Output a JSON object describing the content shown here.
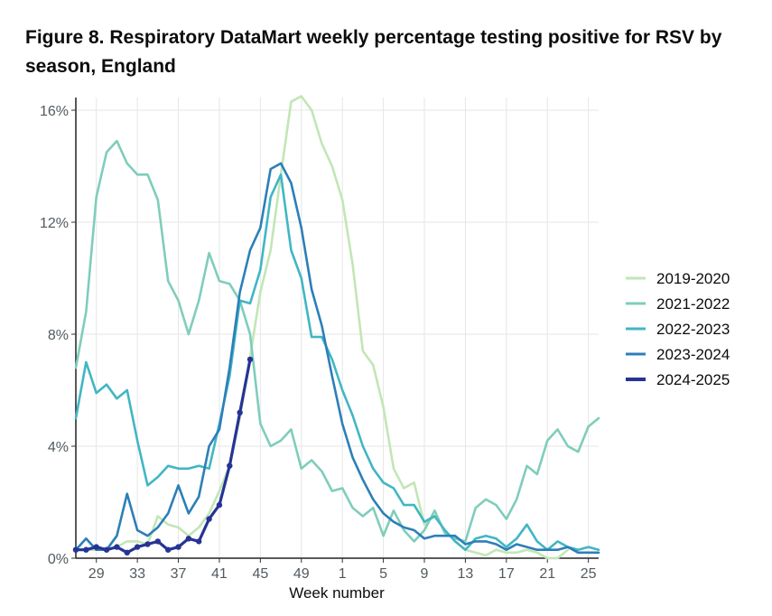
{
  "title": "Figure 8. Respiratory DataMart weekly percentage testing positive for RSV by season, England",
  "chart_data": {
    "type": "line",
    "title": "Figure 8. Respiratory DataMart weekly percentage testing positive for RSV by season, England",
    "xlabel": "Week number",
    "ylabel": "",
    "ylim": [
      0,
      16
    ],
    "grid": true,
    "legend_position": "right",
    "x": [
      27,
      28,
      29,
      30,
      31,
      32,
      33,
      34,
      35,
      36,
      37,
      38,
      39,
      40,
      41,
      42,
      43,
      44,
      45,
      46,
      47,
      48,
      49,
      50,
      51,
      52,
      1,
      2,
      3,
      4,
      5,
      6,
      7,
      8,
      9,
      10,
      11,
      12,
      13,
      14,
      15,
      16,
      17,
      18,
      19,
      20,
      21,
      22,
      23,
      24,
      25,
      26
    ],
    "x_tick_labels": [
      "29",
      "33",
      "37",
      "41",
      "45",
      "49",
      "1",
      "5",
      "9",
      "13",
      "17",
      "21",
      "25"
    ],
    "y_tick_labels": [
      "0%",
      "4%",
      "8%",
      "12%",
      "16%"
    ],
    "series": [
      {
        "name": "2019-2020",
        "color": "#c2e6b6",
        "markers": false,
        "values": [
          0.3,
          0.3,
          0.3,
          0.3,
          0.4,
          0.6,
          0.6,
          0.5,
          1.5,
          1.2,
          1.1,
          0.8,
          1.1,
          1.6,
          2.4,
          3.3,
          5.0,
          7.2,
          9.5,
          11.0,
          13.7,
          16.3,
          16.5,
          16.0,
          14.8,
          14.0,
          12.8,
          10.5,
          7.4,
          6.9,
          5.4,
          3.2,
          2.5,
          2.7,
          1.2,
          1.5,
          1.0,
          0.6,
          0.3,
          0.2,
          0.1,
          0.3,
          0.2,
          0.2,
          0.3,
          0.2,
          0.0,
          0.0,
          0.3,
          null,
          null,
          null
        ]
      },
      {
        "name": "2021-2022",
        "color": "#7fcdbb",
        "markers": false,
        "values": [
          6.8,
          8.8,
          12.9,
          14.5,
          14.9,
          14.1,
          13.7,
          13.7,
          12.8,
          9.9,
          9.2,
          8.0,
          9.2,
          10.9,
          9.9,
          9.8,
          9.2,
          8.0,
          4.8,
          4.0,
          4.2,
          4.6,
          3.2,
          3.5,
          3.1,
          2.4,
          2.5,
          1.8,
          1.5,
          1.8,
          0.8,
          1.7,
          1.0,
          0.6,
          1.0,
          1.7,
          0.9,
          0.7,
          0.6,
          1.8,
          2.1,
          1.9,
          1.4,
          2.1,
          3.3,
          3.0,
          4.2,
          4.6,
          4.0,
          3.8,
          4.7,
          5.0
        ]
      },
      {
        "name": "2022-2023",
        "color": "#41b6c4",
        "markers": false,
        "values": [
          5.0,
          7.0,
          5.9,
          6.2,
          5.7,
          6.0,
          4.2,
          2.6,
          2.9,
          3.3,
          3.2,
          3.2,
          3.3,
          3.2,
          4.8,
          6.5,
          9.2,
          9.1,
          10.3,
          12.9,
          13.7,
          11.0,
          10.0,
          7.9,
          7.9,
          7.1,
          6.0,
          5.1,
          4.0,
          3.2,
          2.7,
          2.5,
          1.9,
          1.9,
          1.3,
          1.5,
          1.0,
          0.6,
          0.3,
          0.7,
          0.8,
          0.7,
          0.4,
          0.7,
          1.2,
          0.6,
          0.3,
          0.6,
          0.4,
          0.3,
          0.4,
          0.3
        ]
      },
      {
        "name": "2023-2024",
        "color": "#2c7fb8",
        "markers": false,
        "values": [
          0.3,
          0.7,
          0.3,
          0.3,
          0.8,
          2.3,
          1.0,
          0.8,
          1.1,
          1.6,
          2.6,
          1.6,
          2.2,
          4.0,
          4.6,
          6.8,
          9.5,
          11.0,
          11.8,
          13.9,
          14.1,
          13.4,
          11.8,
          9.6,
          8.3,
          6.5,
          4.8,
          3.6,
          2.8,
          2.1,
          1.6,
          1.3,
          1.1,
          1.0,
          0.7,
          0.8,
          0.8,
          0.8,
          0.5,
          0.6,
          0.6,
          0.5,
          0.3,
          0.5,
          0.4,
          0.3,
          0.3,
          0.3,
          0.4,
          0.2,
          0.2,
          0.2
        ]
      },
      {
        "name": "2024-2025",
        "color": "#253494",
        "markers": true,
        "values": [
          0.3,
          0.3,
          0.4,
          0.3,
          0.4,
          0.2,
          0.4,
          0.5,
          0.6,
          0.3,
          0.4,
          0.7,
          0.6,
          1.4,
          1.9,
          3.3,
          5.2,
          7.1,
          null,
          null,
          null,
          null,
          null,
          null,
          null,
          null,
          null,
          null,
          null,
          null,
          null,
          null,
          null,
          null,
          null,
          null,
          null,
          null,
          null,
          null,
          null,
          null,
          null,
          null,
          null,
          null,
          null,
          null,
          null,
          null,
          null,
          null
        ]
      }
    ]
  }
}
